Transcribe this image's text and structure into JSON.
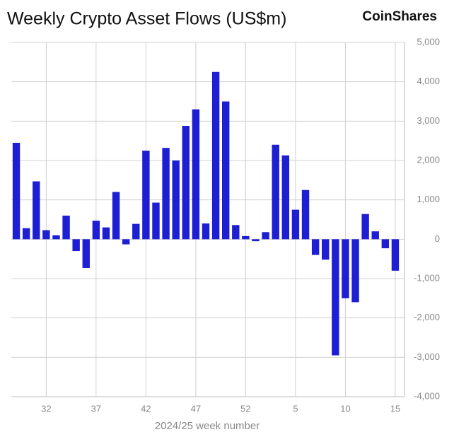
{
  "chart_data": {
    "type": "bar",
    "title": "Weekly Crypto Asset Flows (US$m)",
    "brand": "CoinShares",
    "x_label": "2024/25 week number",
    "categories": [
      null,
      null,
      null,
      "32",
      null,
      null,
      null,
      null,
      "37",
      null,
      null,
      null,
      null,
      "42",
      null,
      null,
      null,
      null,
      "47",
      null,
      null,
      null,
      null,
      "52",
      null,
      null,
      null,
      null,
      "5",
      null,
      null,
      null,
      null,
      "10",
      null,
      null,
      null,
      null,
      "15"
    ],
    "values": [
      2450,
      280,
      1470,
      230,
      100,
      600,
      -300,
      -730,
      470,
      300,
      1200,
      -130,
      390,
      2250,
      930,
      2320,
      2000,
      2880,
      3300,
      400,
      4250,
      3500,
      360,
      80,
      -50,
      180,
      2400,
      2130,
      750,
      1250,
      -400,
      -520,
      -2950,
      -1500,
      -1600,
      640,
      200,
      -230,
      -800
    ],
    "color": "#1e1ed2",
    "ylim": [
      -4000,
      5000
    ],
    "yticks": [
      {
        "value": -4000,
        "label": "-4,000"
      },
      {
        "value": -3000,
        "label": "-3,000"
      },
      {
        "value": -2000,
        "label": "-2,000"
      },
      {
        "value": -1000,
        "label": "-1,000"
      },
      0,
      {
        "value": 1000,
        "label": "1,000"
      },
      {
        "value": 2000,
        "label": "2,000"
      },
      {
        "value": 3000,
        "label": "3,000"
      },
      {
        "value": 4000,
        "label": "4,000"
      },
      {
        "value": 5000,
        "label": "5,000"
      }
    ],
    "grid": true
  }
}
